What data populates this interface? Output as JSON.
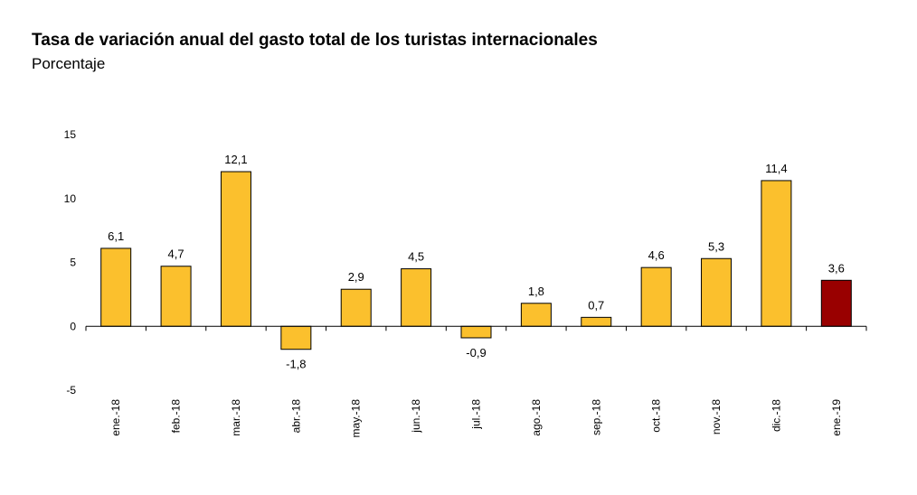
{
  "title": "Tasa de variación anual del gasto total de los turistas internacionales",
  "subtitle": "Porcentaje",
  "chart_data": {
    "type": "bar",
    "title": "Tasa de variación anual del gasto total de los turistas internacionales",
    "subtitle": "Porcentaje",
    "categories": [
      "ene.-18",
      "feb.-18",
      "mar.-18",
      "abr.-18",
      "may.-18",
      "jun.-18",
      "jul.-18",
      "ago.-18",
      "sep.-18",
      "oct.-18",
      "nov.-18",
      "dic.-18",
      "ene.-19"
    ],
    "values": [
      6.1,
      4.7,
      12.1,
      -1.8,
      2.9,
      4.5,
      -0.9,
      1.8,
      0.7,
      4.6,
      5.3,
      11.4,
      3.6
    ],
    "value_labels": [
      "6,1",
      "4,7",
      "12,1",
      "-1,8",
      "2,9",
      "4,5",
      "-0,9",
      "1,8",
      "0,7",
      "4,6",
      "5,3",
      "11,4",
      "3,6"
    ],
    "ylim": [
      -5,
      15
    ],
    "yticks": [
      -5,
      0,
      5,
      10,
      15
    ],
    "ytick_labels": [
      "-5",
      "0",
      "5",
      "10",
      "15"
    ],
    "grid": false,
    "legend": "none",
    "xlabel": "",
    "ylabel": "",
    "colors": {
      "default_bar": "#FBC02D",
      "highlight_bar": "#990000",
      "bar_outline": "#000000",
      "axis": "#000000"
    },
    "highlight_index": 12
  }
}
